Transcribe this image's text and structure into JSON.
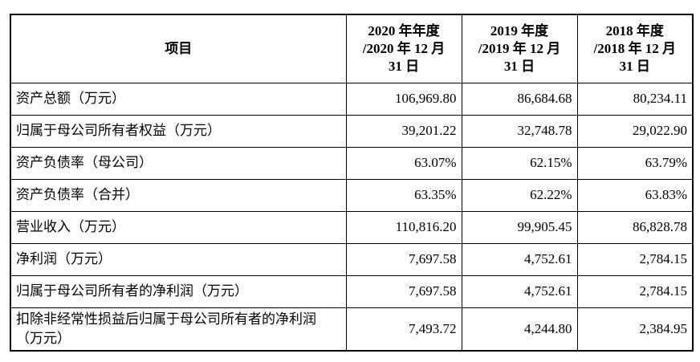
{
  "table": {
    "headers": [
      "项目",
      "2020 年年度\n/2020 年 12 月\n31 日",
      "2019 年度\n/2019 年 12 月\n31 日",
      "2018 年度\n/2018 年 12 月\n31 日"
    ],
    "rows": [
      {
        "label": "资产总额（万元）",
        "v2020": "106,969.80",
        "v2019": "86,684.68",
        "v2018": "80,234.11"
      },
      {
        "label": "归属于母公司所有者权益（万元）",
        "v2020": "39,201.22",
        "v2019": "32,748.78",
        "v2018": "29,022.90"
      },
      {
        "label": "资产负债率（母公司）",
        "v2020": "63.07%",
        "v2019": "62.15%",
        "v2018": "63.79%"
      },
      {
        "label": "资产负债率（合并）",
        "v2020": "63.35%",
        "v2019": "62.22%",
        "v2018": "63.83%"
      },
      {
        "label": "营业收入（万元）",
        "v2020": "110,816.20",
        "v2019": "99,905.45",
        "v2018": "86,828.78"
      },
      {
        "label": "净利润（万元）",
        "v2020": "7,697.58",
        "v2019": "4,752.61",
        "v2018": "2,784.15"
      },
      {
        "label": "归属于母公司所有者的净利润（万元）",
        "v2020": "7,697.58",
        "v2019": "4,752.61",
        "v2018": "2,784.15"
      },
      {
        "label": "扣除非经常性损益后归属于母公司所有者的净利润（万元）",
        "v2020": "7,493.72",
        "v2019": "4,244.80",
        "v2018": "2,384.95"
      }
    ]
  }
}
